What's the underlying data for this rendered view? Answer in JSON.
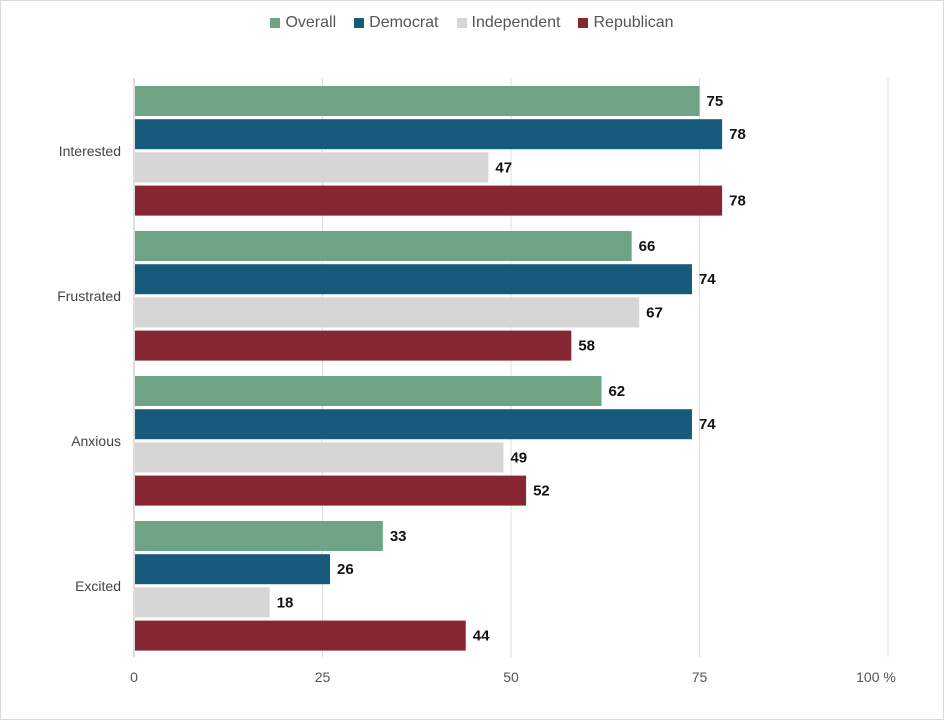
{
  "chart_data": {
    "type": "bar",
    "orientation": "horizontal",
    "categories": [
      "Interested",
      "Frustrated",
      "Anxious",
      "Excited"
    ],
    "series": [
      {
        "name": "Overall",
        "color": "#6fa386",
        "values": [
          75,
          66,
          62,
          33
        ]
      },
      {
        "name": "Democrat",
        "color": "#175b7c",
        "values": [
          78,
          74,
          74,
          26
        ]
      },
      {
        "name": "Independent",
        "color": "#d6d6d6",
        "values": [
          47,
          67,
          49,
          18
        ]
      },
      {
        "name": "Republican",
        "color": "#862632",
        "values": [
          78,
          58,
          52,
          44
        ]
      }
    ],
    "xlim": [
      0,
      100
    ],
    "ticks": [
      "0",
      "25",
      "50",
      "75",
      "100 %"
    ],
    "grid": true,
    "legend_position": "top"
  }
}
